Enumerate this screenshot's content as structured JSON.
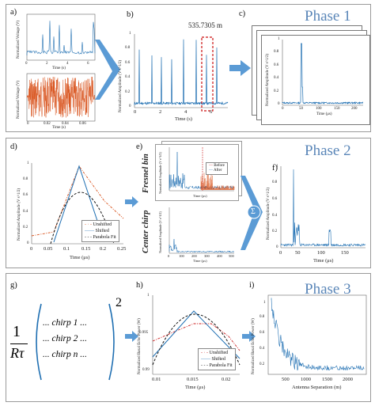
{
  "phases": {
    "p1": "Phase 1",
    "p2": "Phase 2",
    "p3": "Phase 3"
  },
  "labels": {
    "a": "a)",
    "b": "b)",
    "c": "c)",
    "d": "d)",
    "e": "e)",
    "f": "f)",
    "g": "g)",
    "h": "h)",
    "i": "i)"
  },
  "annot_b": "535.7305 m",
  "sigma": "Σ",
  "axes": {
    "norm_voltage": "Normalized Voltage (V)",
    "time_s": "Time (s)",
    "norm_amp_b": "Normalized Amplitude (V s^1/2)",
    "norm_amp_c": "Normalized Amplitude (V s^1/2)",
    "time_us": "Time (μs)",
    "norm_amp_d": "Normalized Amplitude (V s^1/2)",
    "norm_amp_f": "Normalized Amplitude (V s^1/2)",
    "basal_echo": "Normalized Basal Echo Power (W)",
    "antenna_sep": "Antenna Separation (m)"
  },
  "ticks": {
    "a_top_x": [
      "0",
      "2",
      "4",
      "6"
    ],
    "a_bot_x": [
      "0",
      "0.02",
      "0.04",
      "0.06"
    ],
    "b_x": [
      "0",
      "2",
      "4",
      "6"
    ],
    "b_y": [
      "0",
      "0.2",
      "0.4",
      "0.6",
      "0.8",
      "1"
    ],
    "c_x": [
      "0",
      "50",
      "100",
      "150",
      "200"
    ],
    "c_y": [
      "0",
      "0.2",
      "0.4",
      "0.6",
      "0.8",
      "1"
    ],
    "d_x": [
      "0",
      "0.05",
      "0.1",
      "0.15",
      "0.2",
      "0.25"
    ],
    "d_y": [
      "0",
      "0.2",
      "0.4",
      "0.6",
      "0.8",
      "1"
    ],
    "e_x": [
      "0",
      "100",
      "200",
      "300",
      "400",
      "500"
    ],
    "f_x": [
      "0",
      "50",
      "100",
      "150"
    ],
    "f_y": [
      "0",
      "0.2",
      "0.4",
      "0.6",
      "0.8",
      "1"
    ],
    "h_x": [
      "0.01",
      "0.015",
      "0.02"
    ],
    "h_y": [
      "0.99",
      "0.995",
      "1"
    ],
    "i_x": [
      "500",
      "1000",
      "1500",
      "2000"
    ],
    "i_y": [
      "0.2",
      "0.4",
      "0.6",
      "0.8",
      "1"
    ]
  },
  "legend_d": [
    "Unshifted",
    "Shifted",
    "Parabola Fit"
  ],
  "legend_e": [
    "Before",
    "After"
  ],
  "legend_h": [
    "Unshifted",
    "Shifted",
    "Parabola Fit"
  ],
  "fresnel": "Fresnel bin",
  "center": "Center chirp",
  "formula": {
    "num": "1",
    "den": "Rτ",
    "rows": [
      "... chirp 1 ...",
      "... chirp 2 ...",
      "... chirp n ..."
    ],
    "exp": "2"
  },
  "colors": {
    "blue": "#1f6fb2",
    "orange": "#d9541e",
    "dash": "#111111",
    "red": "#cc2222",
    "phase": "#5a86b8",
    "arrow": "#5b9bd5"
  }
}
